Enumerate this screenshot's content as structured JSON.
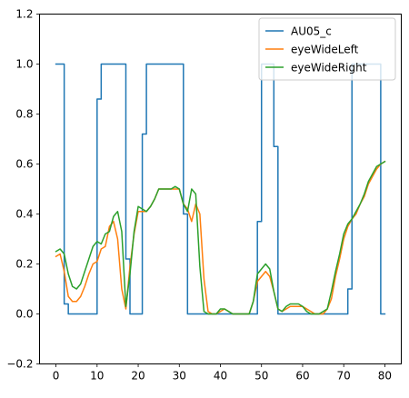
{
  "chart_data": {
    "type": "line",
    "title": "",
    "xlabel": "",
    "ylabel": "",
    "xlim": [
      -4,
      84
    ],
    "ylim": [
      -0.2,
      1.2
    ],
    "xticks": [
      0,
      10,
      20,
      30,
      40,
      50,
      60,
      70,
      80
    ],
    "xtick_labels": [
      "0",
      "10",
      "20",
      "30",
      "40",
      "50",
      "60",
      "70",
      "80"
    ],
    "yticks": [
      -0.2,
      0.0,
      0.2,
      0.4,
      0.6,
      0.8,
      1.0,
      1.2
    ],
    "ytick_labels": [
      "−0.2",
      "0.0",
      "0.2",
      "0.4",
      "0.6",
      "0.8",
      "1.0",
      "1.2"
    ],
    "grid": false,
    "legend_position": "top-right",
    "series": [
      {
        "name": "AU05_c",
        "color": "#1f77b4",
        "drawstyle": "steps-post",
        "x": [
          0,
          1,
          2,
          3,
          4,
          5,
          6,
          7,
          8,
          9,
          10,
          11,
          12,
          13,
          14,
          15,
          16,
          17,
          18,
          19,
          20,
          21,
          22,
          23,
          24,
          25,
          26,
          27,
          28,
          29,
          30,
          31,
          32,
          33,
          34,
          35,
          36,
          37,
          38,
          39,
          40,
          41,
          42,
          43,
          44,
          45,
          46,
          47,
          48,
          49,
          50,
          51,
          52,
          53,
          54,
          55,
          56,
          57,
          58,
          59,
          60,
          61,
          62,
          63,
          64,
          65,
          66,
          67,
          68,
          69,
          70,
          71,
          72,
          73,
          74,
          75,
          76,
          77,
          78,
          79,
          80
        ],
        "values": [
          1,
          1,
          0.04,
          0,
          0,
          0,
          0,
          0,
          0,
          0,
          0.86,
          1,
          1,
          1,
          1,
          1,
          1,
          0.22,
          0,
          0,
          0,
          0.72,
          1,
          1,
          1,
          1,
          1,
          1,
          1,
          1,
          1,
          0.4,
          0,
          0,
          0,
          0,
          0,
          0,
          0,
          0,
          0,
          0,
          0,
          0,
          0,
          0,
          0,
          0,
          0,
          0.37,
          1,
          1,
          1,
          0.67,
          0,
          0,
          0,
          0,
          0,
          0,
          0,
          0,
          0,
          0,
          0,
          0,
          0,
          0,
          0,
          0,
          0,
          0.1,
          1,
          1,
          1,
          1,
          1,
          1,
          1,
          0,
          0
        ]
      },
      {
        "name": "eyeWideLeft",
        "color": "#ff7f0e",
        "x": [
          0,
          1,
          2,
          3,
          4,
          5,
          6,
          7,
          8,
          9,
          10,
          11,
          12,
          13,
          14,
          15,
          16,
          17,
          18,
          19,
          20,
          21,
          22,
          23,
          24,
          25,
          26,
          27,
          28,
          29,
          30,
          31,
          32,
          33,
          34,
          35,
          36,
          37,
          38,
          39,
          40,
          41,
          42,
          43,
          44,
          45,
          46,
          47,
          48,
          49,
          50,
          51,
          52,
          53,
          54,
          55,
          56,
          57,
          58,
          59,
          60,
          61,
          62,
          63,
          64,
          65,
          66,
          67,
          68,
          69,
          70,
          71,
          72,
          73,
          74,
          75,
          76,
          77,
          78,
          79,
          80
        ],
        "values": [
          0.23,
          0.24,
          0.17,
          0.07,
          0.05,
          0.05,
          0.07,
          0.11,
          0.16,
          0.2,
          0.21,
          0.26,
          0.27,
          0.35,
          0.37,
          0.3,
          0.1,
          0.02,
          0.19,
          0.32,
          0.41,
          0.41,
          0.41,
          0.43,
          0.46,
          0.5,
          0.5,
          0.5,
          0.5,
          0.5,
          0.5,
          0.44,
          0.42,
          0.37,
          0.44,
          0.4,
          0.14,
          0.01,
          0,
          0,
          0.01,
          0.02,
          0.01,
          0,
          0,
          0,
          0,
          0,
          0.05,
          0.13,
          0.15,
          0.17,
          0.15,
          0.09,
          0.02,
          0.01,
          0.02,
          0.03,
          0.03,
          0.03,
          0.03,
          0.02,
          0.01,
          0,
          0,
          0,
          0.02,
          0.06,
          0.15,
          0.22,
          0.3,
          0.35,
          0.38,
          0.4,
          0.44,
          0.47,
          0.52,
          0.55,
          0.58,
          0.6,
          0.61
        ]
      },
      {
        "name": "eyeWideRight",
        "color": "#2ca02c",
        "x": [
          0,
          1,
          2,
          3,
          4,
          5,
          6,
          7,
          8,
          9,
          10,
          11,
          12,
          13,
          14,
          15,
          16,
          17,
          18,
          19,
          20,
          21,
          22,
          23,
          24,
          25,
          26,
          27,
          28,
          29,
          30,
          31,
          32,
          33,
          34,
          35,
          36,
          37,
          38,
          39,
          40,
          41,
          42,
          43,
          44,
          45,
          46,
          47,
          48,
          49,
          50,
          51,
          52,
          53,
          54,
          55,
          56,
          57,
          58,
          59,
          60,
          61,
          62,
          63,
          64,
          65,
          66,
          67,
          68,
          69,
          70,
          71,
          72,
          73,
          74,
          75,
          76,
          77,
          78,
          79,
          80
        ],
        "values": [
          0.25,
          0.26,
          0.24,
          0.16,
          0.11,
          0.1,
          0.12,
          0.17,
          0.22,
          0.27,
          0.29,
          0.28,
          0.32,
          0.33,
          0.39,
          0.41,
          0.33,
          0.03,
          0.16,
          0.33,
          0.43,
          0.42,
          0.41,
          0.43,
          0.46,
          0.5,
          0.5,
          0.5,
          0.5,
          0.51,
          0.5,
          0.44,
          0.41,
          0.5,
          0.48,
          0.19,
          0.01,
          0,
          0,
          0,
          0.02,
          0.02,
          0.01,
          0,
          0,
          0,
          0,
          0,
          0.05,
          0.16,
          0.18,
          0.2,
          0.18,
          0.09,
          0.02,
          0.01,
          0.03,
          0.04,
          0.04,
          0.04,
          0.03,
          0.01,
          0,
          0,
          0,
          0.01,
          0.02,
          0.09,
          0.17,
          0.24,
          0.32,
          0.36,
          0.38,
          0.41,
          0.44,
          0.48,
          0.53,
          0.56,
          0.59,
          0.6,
          0.61
        ]
      }
    ]
  }
}
